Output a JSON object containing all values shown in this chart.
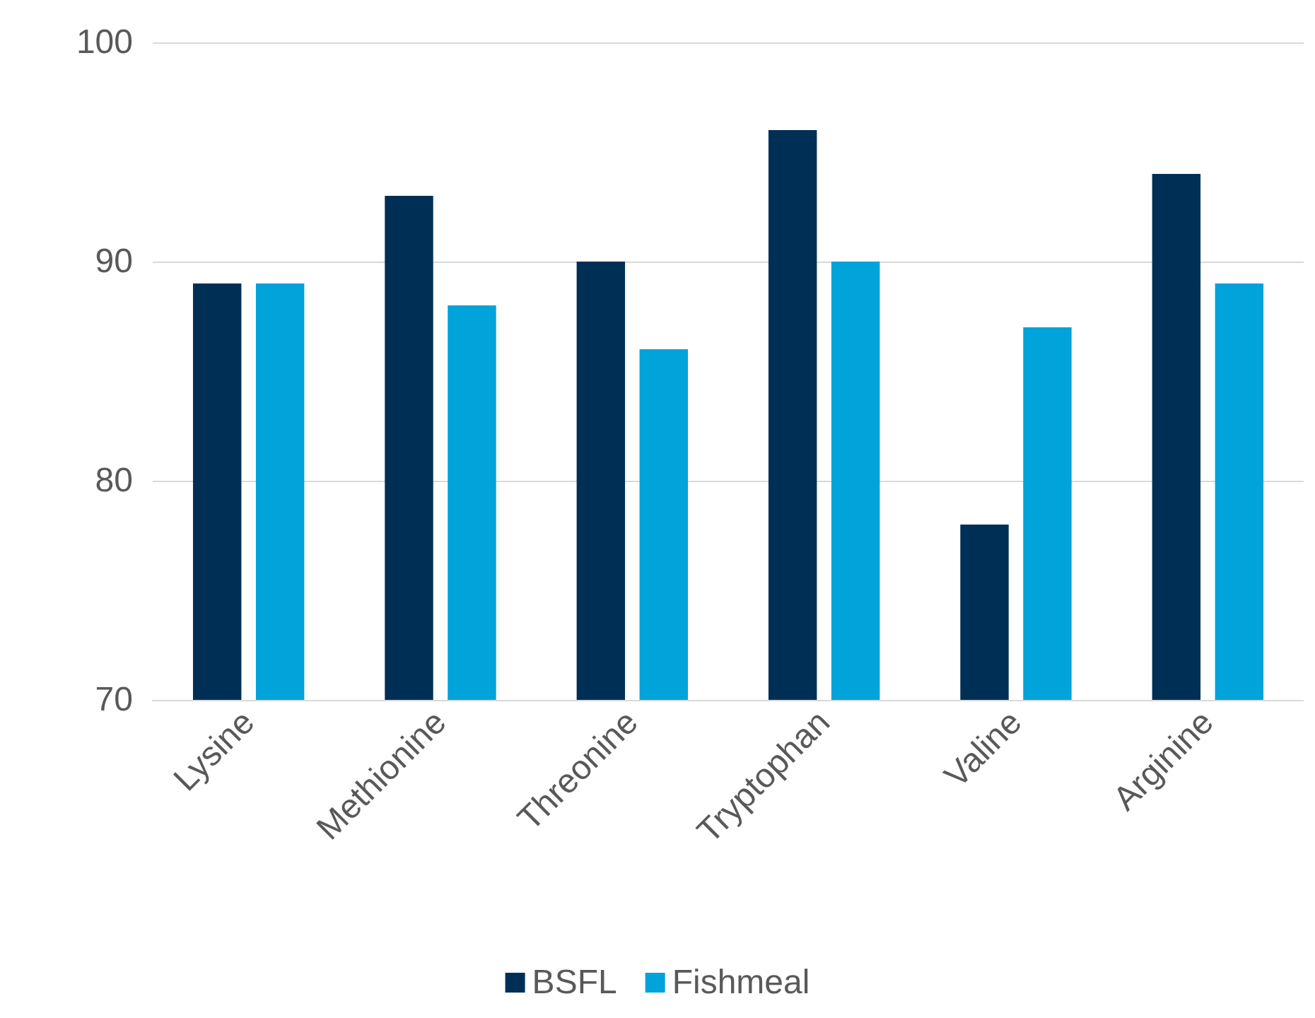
{
  "chart_data": {
    "type": "bar",
    "categories": [
      "Lysine",
      "Methionine",
      "Threonine",
      "Tryptophan",
      "Valine",
      "Arginine"
    ],
    "series": [
      {
        "name": "BSFL",
        "color": "#002f56",
        "values": [
          89,
          93,
          90,
          96,
          78,
          94
        ]
      },
      {
        "name": "Fishmeal",
        "color": "#00a3da",
        "values": [
          89,
          88,
          86,
          90,
          87,
          89
        ]
      }
    ],
    "ylim": [
      70,
      100
    ],
    "yticks": [
      70,
      80,
      90,
      100
    ],
    "grid": "y",
    "legend": "bottom"
  }
}
